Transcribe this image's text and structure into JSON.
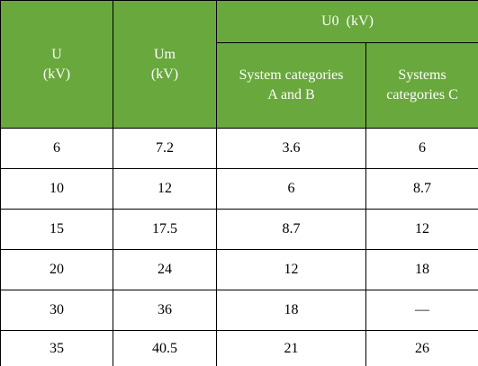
{
  "table": {
    "header": {
      "u": "U\n(kV)",
      "um": "Um\n(kV)",
      "u0": "U0  (kV)",
      "sub": [
        "System categories\nA and B",
        "Systems\ncategories C"
      ]
    },
    "rows": [
      [
        "6",
        "7.2",
        "3.6",
        "6"
      ],
      [
        "10",
        "12",
        "6",
        "8.7"
      ],
      [
        "15",
        "17.5",
        "8.7",
        "12"
      ],
      [
        "20",
        "24",
        "12",
        "18"
      ],
      [
        "30",
        "36",
        "18",
        "—"
      ],
      [
        "35",
        "40.5",
        "21",
        "26"
      ]
    ]
  }
}
